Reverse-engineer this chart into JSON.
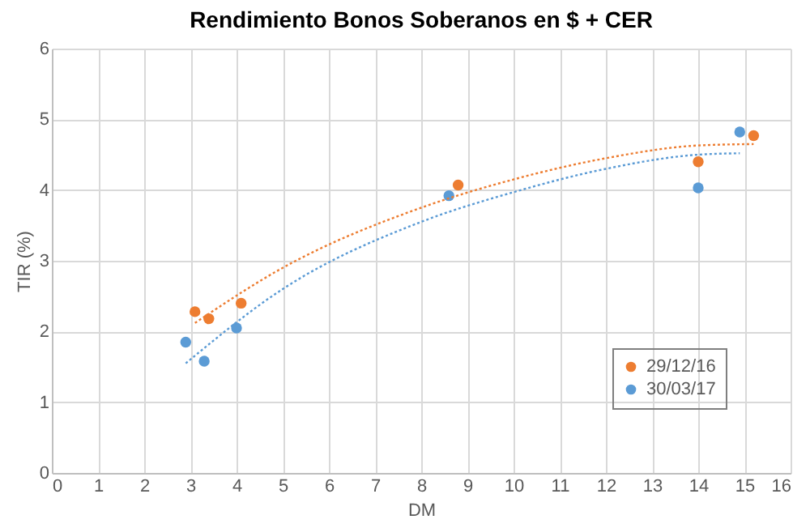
{
  "chart_data": {
    "type": "scatter",
    "title": "Rendimiento Bonos Soberanos en $ + CER",
    "xlabel": "DM",
    "ylabel": "TIR (%)",
    "xlim": [
      0,
      16
    ],
    "xticks": [
      0,
      1,
      2,
      3,
      4,
      5,
      6,
      7,
      8,
      9,
      10,
      11,
      12,
      13,
      14,
      15,
      16
    ],
    "ylim": [
      0,
      6
    ],
    "yticks": [
      0,
      1,
      2,
      3,
      4,
      5,
      6
    ],
    "grid": true,
    "legend": "bottom right",
    "marker": "circle",
    "series": [
      {
        "name": "29/12/16",
        "color": "#ed7d31",
        "x": [
          3.1,
          3.4,
          4.1,
          8.8,
          14,
          15.2
        ],
        "values": [
          2.28,
          2.18,
          2.4,
          4.07,
          4.4,
          4.77
        ]
      },
      {
        "name": "30/03/17",
        "color": "#5b9bd5",
        "x": [
          2.9,
          3.3,
          4.0,
          8.6,
          14,
          14.9
        ],
        "values": [
          1.85,
          1.58,
          2.05,
          3.92,
          4.03,
          4.82
        ]
      },
      {
        "type": "line",
        "line_style": "dotted",
        "marker": "none",
        "color": "#ed7d31",
        "x": [
          3.1,
          5,
          8,
          10,
          12,
          14,
          15.2
        ],
        "values": [
          2.12,
          2.9,
          3.75,
          4.15,
          4.45,
          4.63,
          4.65
        ]
      },
      {
        "type": "line",
        "line_style": "dotted",
        "marker": "none",
        "color": "#5b9bd5",
        "x": [
          2.9,
          5,
          8,
          10,
          12,
          14,
          14.9
        ],
        "values": [
          1.55,
          2.6,
          3.55,
          3.97,
          4.3,
          4.5,
          4.52
        ]
      }
    ]
  }
}
